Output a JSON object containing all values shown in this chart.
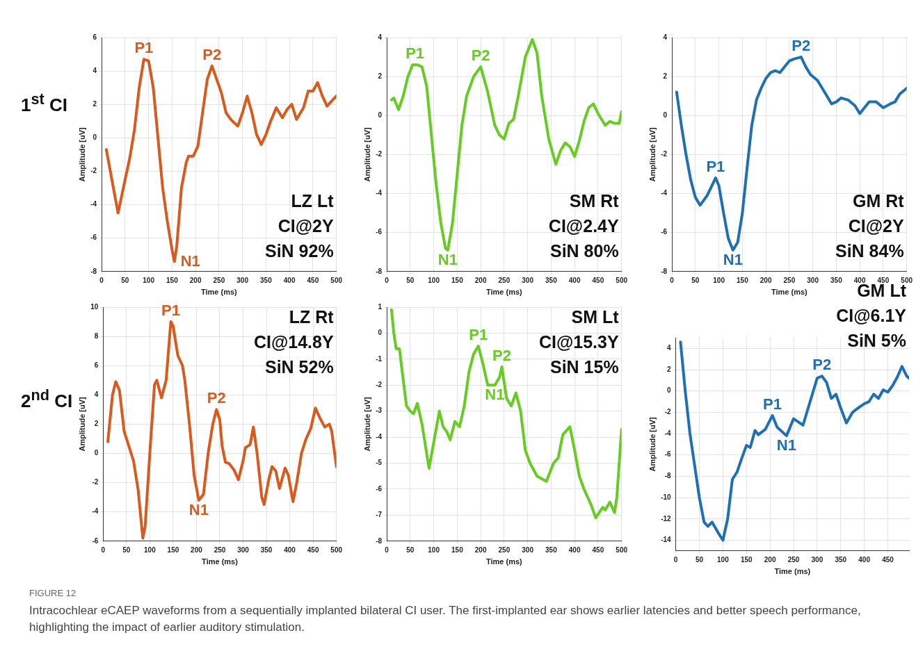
{
  "chart_data": [
    {
      "type": "line",
      "subtitle": "1$^{st}$ CI",
      "xlabel": "Time (ms)",
      "ylabel": "Amplitude [uV]",
      "color": "#d95a1c",
      "grid": true,
      "xlim": [
        0,
        500
      ],
      "xticks": [
        0,
        50,
        100,
        150,
        200,
        250,
        300,
        350,
        400,
        450,
        500
      ],
      "ylim": [
        -8,
        6
      ],
      "yticks": [
        -8,
        -6,
        -4,
        -2,
        0,
        2,
        4,
        6
      ],
      "x": [
        10,
        35,
        50,
        60,
        70,
        80,
        90,
        100,
        110,
        120,
        130,
        140,
        150,
        155,
        160,
        170,
        180,
        185,
        195,
        205,
        215,
        225,
        235,
        245,
        255,
        265,
        275,
        290,
        300,
        310,
        320,
        330,
        340,
        350,
        360,
        372,
        385,
        395,
        405,
        415,
        430,
        440,
        450,
        460,
        470,
        480,
        490,
        500
      ],
      "values": [
        -0.7,
        -4.5,
        -2.5,
        -1.2,
        0.5,
        3,
        4.7,
        4.6,
        3,
        0,
        -3,
        -5,
        -6.7,
        -7.4,
        -6.5,
        -3,
        -1.5,
        -1.1,
        -1.1,
        -0.5,
        1.5,
        3.5,
        4.3,
        3.5,
        2.7,
        1.5,
        1.1,
        0.7,
        1.5,
        2.5,
        1.5,
        0.2,
        -0.4,
        0.2,
        1,
        1.8,
        1.2,
        1.7,
        2,
        1.1,
        1.8,
        2.8,
        2.8,
        3.3,
        2.5,
        1.9,
        2.2,
        2.5
      ],
      "annotations": [
        {
          "text": "P1",
          "x": 90,
          "y": 4.7
        },
        {
          "text": "N1",
          "x": 155,
          "y": -7.4
        },
        {
          "text": "P2",
          "x": 235,
          "y": 4.3
        },
        "LZ Lt",
        "CI@2Y",
        "SiN 92%"
      ]
    },
    {
      "type": "line",
      "xlabel": "Time (ms)",
      "ylabel": "Amplitude [uV]",
      "color": "#66cc22",
      "grid": true,
      "xlim": [
        0,
        500
      ],
      "xticks": [
        0,
        50,
        100,
        150,
        200,
        250,
        300,
        350,
        400,
        450,
        500
      ],
      "ylim": [
        -8,
        4
      ],
      "yticks": [
        -8,
        -6,
        -4,
        -2,
        0,
        2,
        4
      ],
      "x": [
        10,
        15,
        25,
        35,
        45,
        55,
        65,
        75,
        85,
        95,
        105,
        115,
        125,
        130,
        140,
        150,
        160,
        170,
        185,
        200,
        215,
        230,
        240,
        250,
        260,
        270,
        280,
        295,
        310,
        320,
        330,
        345,
        360,
        370,
        380,
        390,
        400,
        410,
        420,
        430,
        440,
        450,
        465,
        475,
        485,
        495,
        500
      ],
      "values": [
        0.8,
        0.9,
        0.3,
        1,
        2,
        2.6,
        2.6,
        2.5,
        1.5,
        -1,
        -3.5,
        -5.5,
        -6.8,
        -6.9,
        -5.5,
        -3,
        -0.5,
        1,
        2,
        2.5,
        1.2,
        -0.5,
        -1,
        -1.2,
        -0.4,
        -0.2,
        1,
        3,
        3.9,
        3.2,
        1,
        -1.2,
        -2.5,
        -1.8,
        -1.4,
        -1.6,
        -2.1,
        -1.3,
        -0.3,
        0.4,
        0.6,
        0.1,
        -0.5,
        -0.3,
        -0.4,
        -0.4,
        0.2
      ],
      "annotations": [
        {
          "text": "P1",
          "x": 60,
          "y": 2.6
        },
        {
          "text": "N1",
          "x": 130,
          "y": -6.9
        },
        {
          "text": "P2",
          "x": 200,
          "y": 2.5
        },
        "SM Rt",
        "CI@2.4Y",
        "SiN 80%"
      ]
    },
    {
      "type": "line",
      "xlabel": "Time (ms)",
      "ylabel": "Amplitude [uV]",
      "color": "#1f6fb5",
      "grid": true,
      "xlim": [
        0,
        500
      ],
      "xticks": [
        0,
        50,
        100,
        150,
        200,
        250,
        300,
        350,
        400,
        450,
        500
      ],
      "ylim": [
        -8,
        4
      ],
      "yticks": [
        -8,
        -6,
        -4,
        -2,
        0,
        2,
        4
      ],
      "x": [
        10,
        20,
        30,
        40,
        50,
        60,
        75,
        85,
        93,
        100,
        110,
        120,
        130,
        140,
        150,
        160,
        170,
        180,
        190,
        200,
        210,
        220,
        230,
        240,
        250,
        260,
        275,
        285,
        295,
        310,
        325,
        340,
        350,
        360,
        375,
        390,
        400,
        410,
        420,
        435,
        450,
        465,
        475,
        485,
        500
      ],
      "values": [
        1.2,
        -0.5,
        -2,
        -3.3,
        -4.2,
        -4.6,
        -4.1,
        -3.6,
        -3.2,
        -3.6,
        -5,
        -6.3,
        -6.9,
        -6.5,
        -5,
        -2.7,
        -0.5,
        0.8,
        1.4,
        1.9,
        2.2,
        2.3,
        2.2,
        2.5,
        2.8,
        2.9,
        3,
        2.5,
        2.1,
        1.8,
        1.2,
        0.6,
        0.7,
        0.9,
        0.8,
        0.5,
        0.1,
        0.4,
        0.7,
        0.7,
        0.4,
        0.6,
        0.7,
        1.1,
        1.4
      ],
      "annotations": [
        {
          "text": "P1",
          "x": 93,
          "y": -3.2
        },
        {
          "text": "N1",
          "x": 130,
          "y": -6.9
        },
        {
          "text": "P2",
          "x": 275,
          "y": 3
        },
        "GM Rt",
        "CI@2Y",
        "SiN 84%"
      ]
    },
    {
      "type": "line",
      "subtitle": "2$^{nd}$ CI",
      "xlabel": "Time (ms)",
      "ylabel": "Amplitude [uV]",
      "color": "#d95a1c",
      "grid": true,
      "xlim": [
        0,
        500
      ],
      "xticks": [
        0,
        50,
        100,
        150,
        200,
        250,
        300,
        350,
        400,
        450,
        500
      ],
      "ylim": [
        -6,
        10
      ],
      "yticks": [
        -6,
        -4,
        -2,
        0,
        2,
        4,
        6,
        8,
        10
      ],
      "x": [
        10,
        20,
        27,
        35,
        45,
        55,
        65,
        75,
        85,
        90,
        100,
        110,
        115,
        125,
        135,
        145,
        150,
        160,
        170,
        175,
        185,
        195,
        205,
        215,
        225,
        235,
        243,
        250,
        255,
        262,
        270,
        280,
        290,
        300,
        305,
        315,
        322,
        330,
        340,
        345,
        355,
        362,
        370,
        378,
        390,
        397,
        407,
        415,
        425,
        435,
        445,
        455,
        465,
        475,
        485,
        490,
        500
      ],
      "values": [
        0.8,
        4,
        4.9,
        4.3,
        1.5,
        0.5,
        -0.5,
        -2.5,
        -5.8,
        -5,
        0,
        4.7,
        5,
        3.8,
        5,
        9,
        8.7,
        6.7,
        6,
        5,
        2,
        -1.5,
        -3.2,
        -2.8,
        0,
        2,
        3,
        2.3,
        0.5,
        -0.6,
        -0.7,
        -1.1,
        -1.8,
        -0.5,
        0.4,
        0.6,
        1.8,
        0,
        -3,
        -3.5,
        -1.8,
        -0.9,
        -1.2,
        -2.4,
        -1,
        -1.5,
        -3.3,
        -2,
        0,
        1,
        1.7,
        3.1,
        2.4,
        1.8,
        2,
        1.5,
        -0.9
      ],
      "annotations": [
        {
          "text": "P1",
          "x": 145,
          "y": 9
        },
        {
          "text": "N1",
          "x": 205,
          "y": -3.2
        },
        {
          "text": "P2",
          "x": 243,
          "y": 3
        },
        "LZ Rt",
        "CI@14.8Y",
        "SiN 52%"
      ]
    },
    {
      "type": "line",
      "xlabel": "Time (ms)",
      "ylabel": "Amplitude [uV]",
      "color": "#66cc22",
      "grid": true,
      "xlim": [
        0,
        500
      ],
      "xticks": [
        0,
        50,
        100,
        150,
        200,
        250,
        300,
        350,
        400,
        450,
        500
      ],
      "ylim": [
        -8,
        1
      ],
      "yticks": [
        -8,
        -7,
        -6,
        -5,
        -4,
        -3,
        -2,
        -1,
        0,
        1
      ],
      "x": [
        10,
        15,
        20,
        27,
        35,
        42,
        50,
        57,
        65,
        75,
        90,
        100,
        112,
        120,
        128,
        135,
        145,
        155,
        165,
        175,
        185,
        195,
        205,
        215,
        230,
        240,
        245,
        255,
        265,
        275,
        285,
        295,
        305,
        320,
        340,
        355,
        365,
        375,
        390,
        400,
        410,
        420,
        435,
        445,
        460,
        465,
        475,
        485,
        490,
        500
      ],
      "values": [
        0.9,
        0,
        -0.6,
        -0.6,
        -1.8,
        -2.8,
        -3,
        -3.1,
        -2.7,
        -3.5,
        -5.2,
        -4.2,
        -3,
        -3.6,
        -3.8,
        -4.1,
        -3.4,
        -3.6,
        -2.8,
        -1.5,
        -0.8,
        -0.5,
        -1.2,
        -2,
        -2,
        -1.7,
        -1.3,
        -2.5,
        -2.8,
        -2.3,
        -3,
        -4.5,
        -5,
        -5.5,
        -5.7,
        -5,
        -4.8,
        -3.9,
        -3.6,
        -4.5,
        -5.5,
        -6,
        -6.6,
        -7.1,
        -6.7,
        -6.8,
        -6.5,
        -6.9,
        -6.3,
        -3.7
      ],
      "annotations": [
        {
          "text": "P1",
          "x": 195,
          "y": -0.5
        },
        {
          "text": "N1",
          "x": 230,
          "y": -2
        },
        {
          "text": "P2",
          "x": 245,
          "y": -1.3
        },
        "SM Lt",
        "CI@15.3Y",
        "SiN 15%"
      ]
    },
    {
      "type": "line",
      "xlabel": "Time (ms)",
      "ylabel": "Amplitude [uV]",
      "color": "#1f6fb5",
      "grid": true,
      "xlim": [
        0,
        495
      ],
      "xticks": [
        0,
        50,
        100,
        150,
        200,
        250,
        300,
        350,
        400,
        450
      ],
      "ylim": [
        -15,
        5
      ],
      "yticks": [
        -14,
        -12,
        -10,
        -8,
        -6,
        -4,
        -2,
        0,
        2,
        4
      ],
      "x": [
        10,
        20,
        30,
        40,
        50,
        60,
        68,
        77,
        90,
        100,
        110,
        120,
        130,
        140,
        150,
        158,
        168,
        175,
        190,
        205,
        215,
        235,
        250,
        270,
        285,
        300,
        310,
        320,
        330,
        340,
        350,
        362,
        375,
        390,
        400,
        410,
        420,
        430,
        440,
        450,
        460,
        470,
        480,
        490,
        495
      ],
      "values": [
        4.6,
        0,
        -4,
        -7,
        -10,
        -12.3,
        -12.7,
        -12.3,
        -13.3,
        -14,
        -12,
        -8.3,
        -7.6,
        -6.3,
        -5.1,
        -5.3,
        -3.7,
        -4.1,
        -3.6,
        -2.3,
        -3.4,
        -4.2,
        -2.6,
        -3.2,
        -1,
        1.2,
        1.4,
        0.8,
        -0.7,
        -0.3,
        -1.6,
        -3,
        -2,
        -1.5,
        -1.2,
        -1,
        -0.3,
        -0.7,
        0.1,
        -0.1,
        0.5,
        1.3,
        2.3,
        1.4,
        1.2
      ],
      "annotations": [
        {
          "text": "P1",
          "x": 205,
          "y": -2.3
        },
        {
          "text": "N1",
          "x": 235,
          "y": -4.2
        },
        {
          "text": "P2",
          "x": 310,
          "y": 1.4
        },
        "GM Lt",
        "CI@6.1Y",
        "SiN 5%"
      ]
    },
    {
      "type": "other",
      "title": "FIGURE 12",
      "annotations": [
        "Intracochlear eCAEP waveforms from a sequentially implanted bilateral CI user. The first-implanted ear shows earlier latencies and better speech performance, highlighting the impact of earlier auditory stimulation."
      ]
    }
  ]
}
